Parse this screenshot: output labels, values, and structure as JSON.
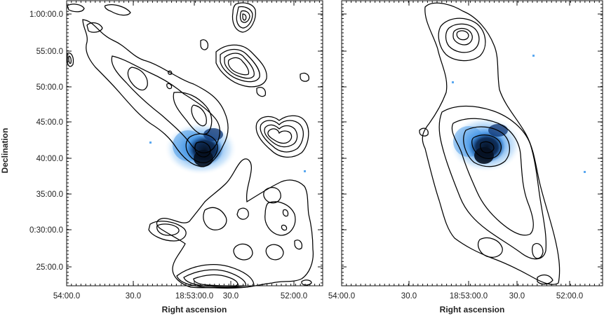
{
  "chart_data": [
    {
      "type": "contour",
      "panel": "left",
      "xlabel": "Right ascension",
      "ylabel": "Declination",
      "xticks": [
        "54:00.0",
        "30.0",
        "18:53:00.0",
        "30.0",
        "52:00.0"
      ],
      "yticks": [
        "1:00:00.0",
        "55:00.0",
        "50:00.0",
        "45:00.0",
        "40:00.0",
        "35:00.0",
        "0:30:00.0",
        "25:00.0"
      ],
      "colors": {
        "emission": "#1e78d8",
        "core": "#0a1e3c",
        "contour": "#000000"
      }
    },
    {
      "type": "contour",
      "panel": "right",
      "xlabel": "Right ascension",
      "ylabel": "",
      "xticks": [
        "54:00.0",
        "30.0",
        "18:53:00.0",
        "30.0",
        "52:00.0"
      ],
      "yticks": [],
      "colors": {
        "emission": "#1e78d8",
        "core": "#0a1e3c",
        "contour": "#000000"
      }
    }
  ]
}
